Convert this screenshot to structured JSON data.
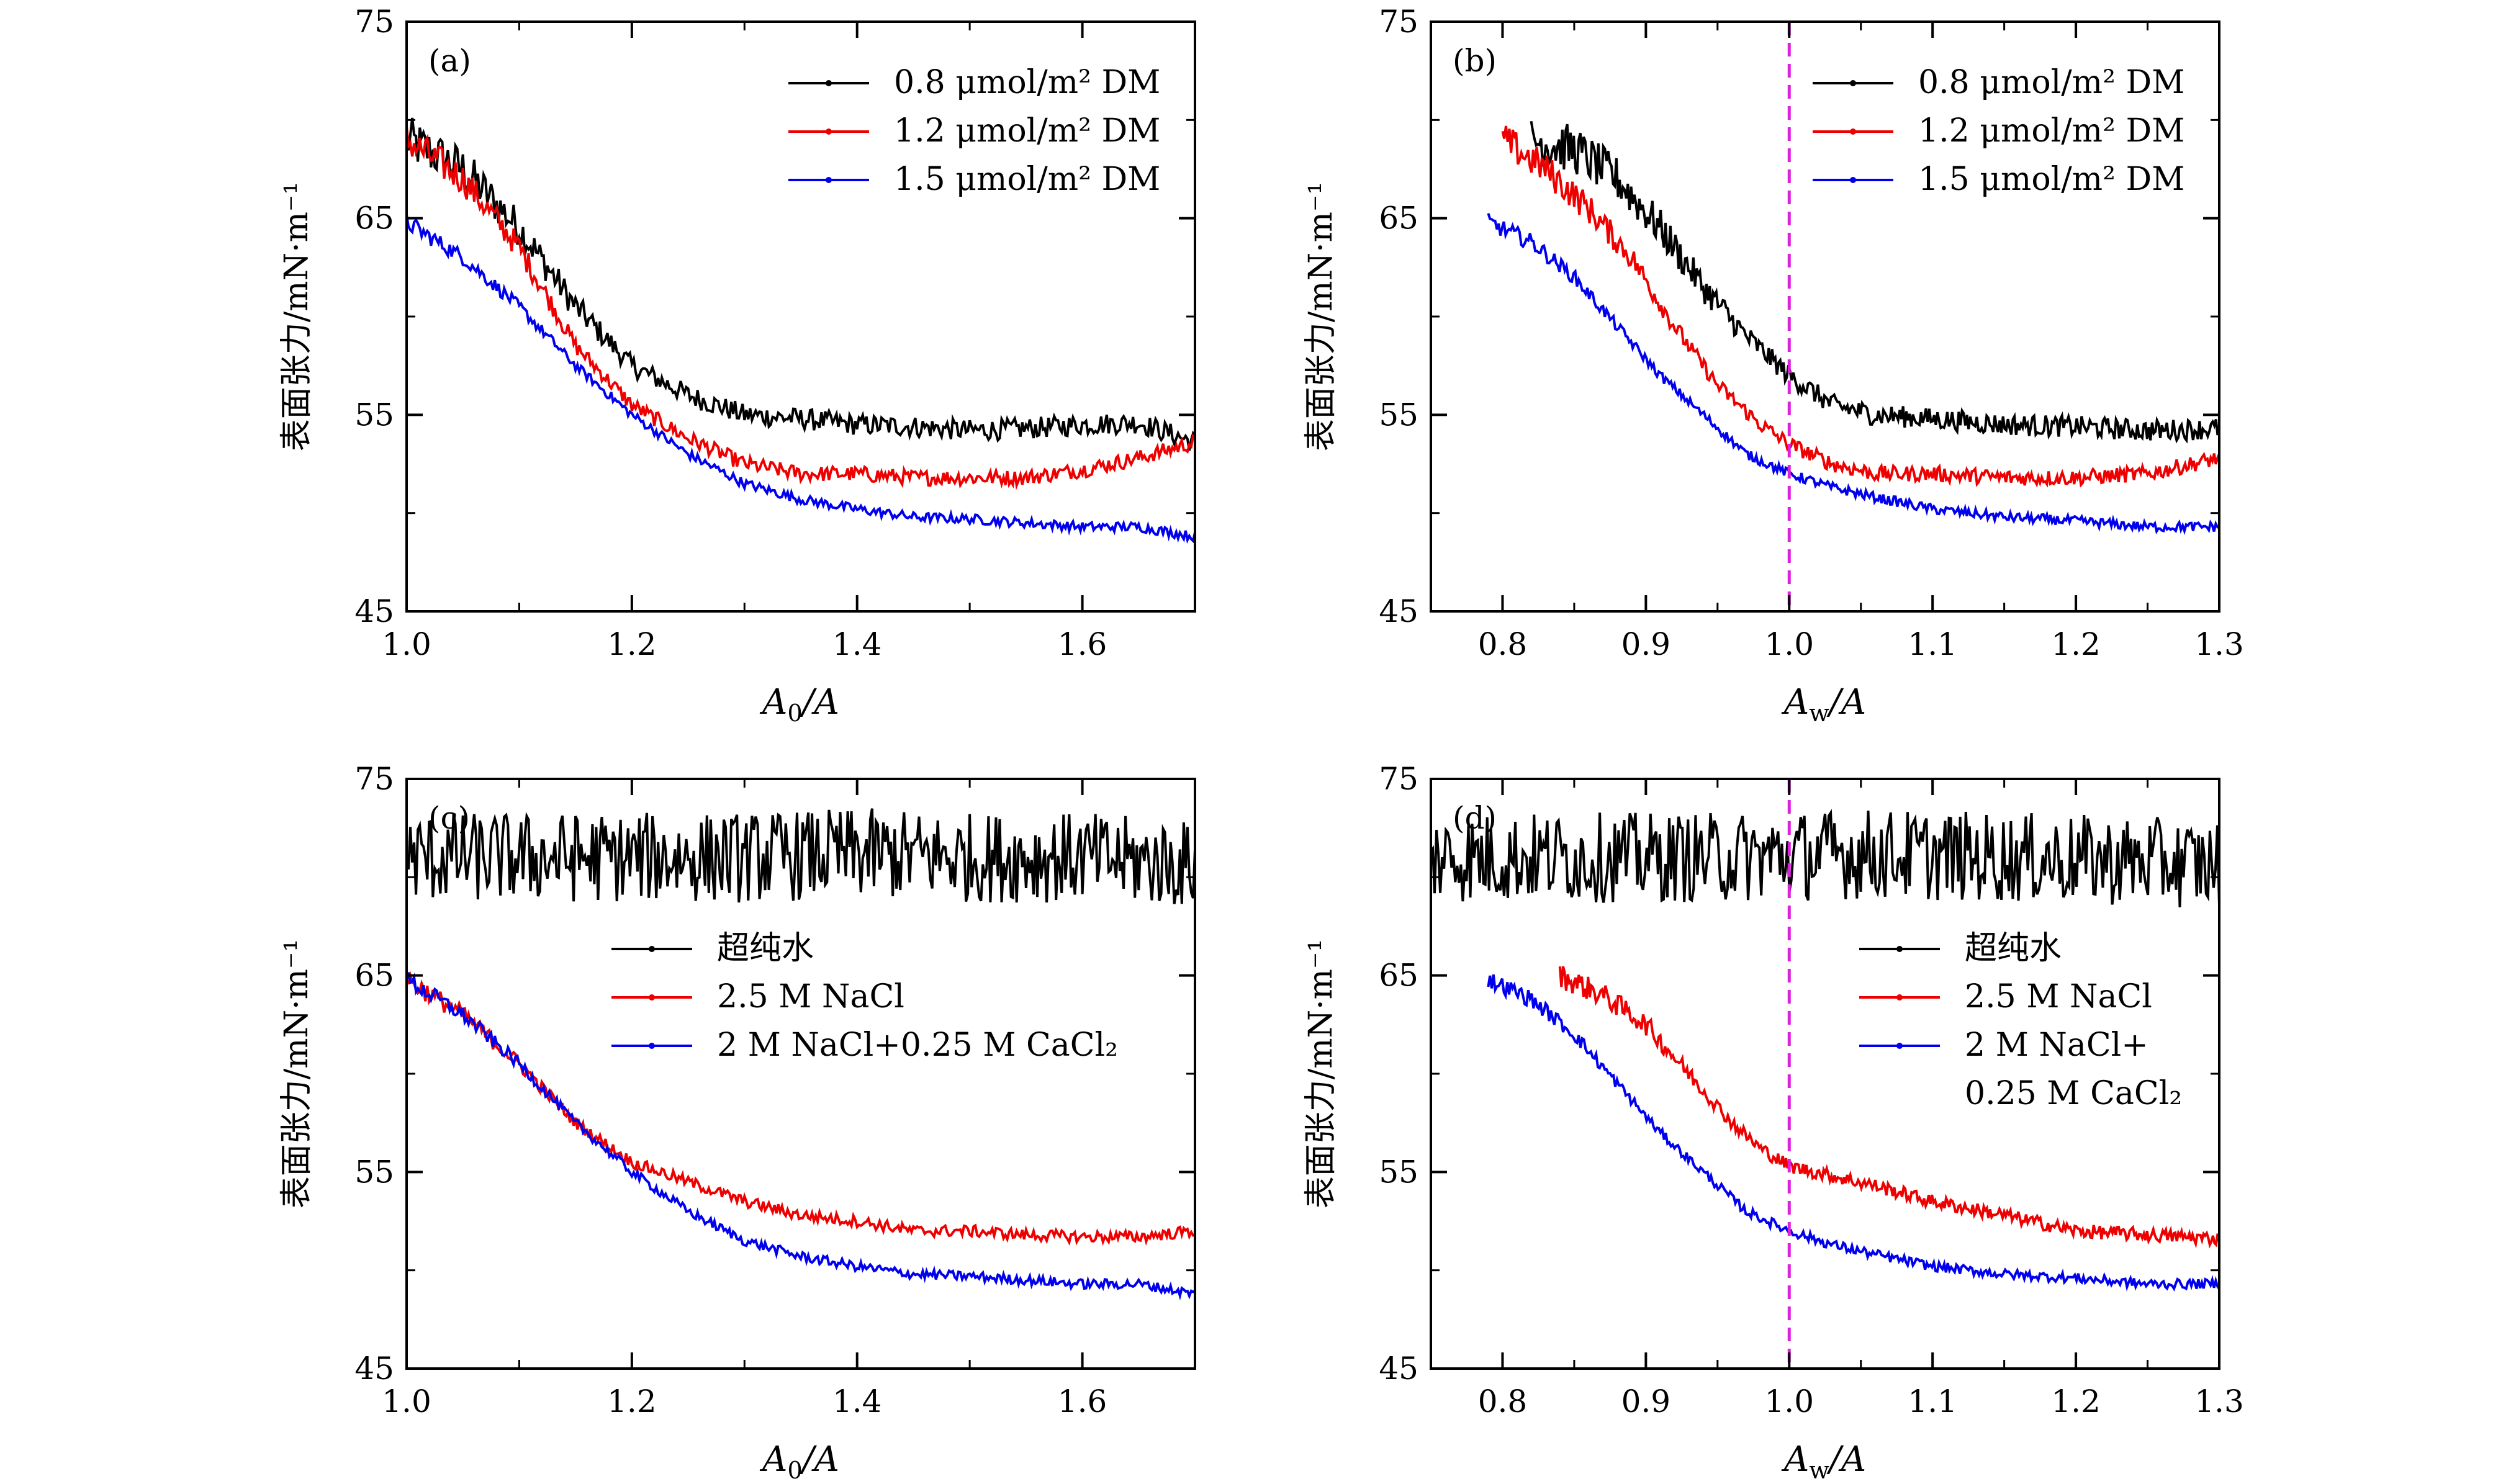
{
  "figure": {
    "ylabel": "表面张力/mN·m⁻¹"
  },
  "chart_data": [
    {
      "panel": "(a)",
      "type": "line",
      "xlabel_main": "A",
      "xlabel_sub": "0",
      "xlabel_tail": "/A",
      "ylabel": "表面张力/mN·m⁻¹",
      "xlim": [
        1.0,
        1.7
      ],
      "ylim": [
        45,
        75
      ],
      "xticks": [
        1.0,
        1.2,
        1.4,
        1.6
      ],
      "xtick_labels": [
        "1.0",
        "1.2",
        "1.4",
        "1.6"
      ],
      "yticks": [
        45,
        55,
        65,
        75
      ],
      "ytick_labels": [
        "45",
        "55",
        "65",
        "75"
      ],
      "legend_position": "top-right",
      "vline": null,
      "series": [
        {
          "name": "0.8 μmol/m² DM",
          "color": "#000000",
          "noise": 0.55,
          "x": [
            1.0,
            1.05,
            1.1,
            1.15,
            1.2,
            1.25,
            1.3,
            1.35,
            1.4,
            1.45,
            1.5,
            1.55,
            1.6,
            1.65,
            1.7
          ],
          "y": [
            69.0,
            67.5,
            64.5,
            60.5,
            57.5,
            56.0,
            55.0,
            54.8,
            54.5,
            54.4,
            54.2,
            54.3,
            54.5,
            54.6,
            53.6
          ]
        },
        {
          "name": "1.2 μmol/m² DM",
          "color": "#ee0000",
          "noise": 0.4,
          "x": [
            1.0,
            1.05,
            1.1,
            1.15,
            1.2,
            1.25,
            1.3,
            1.35,
            1.4,
            1.45,
            1.5,
            1.55,
            1.6,
            1.65,
            1.7
          ],
          "y": [
            69.0,
            67.0,
            63.5,
            58.5,
            55.5,
            53.8,
            52.5,
            52.0,
            52.0,
            51.8,
            51.8,
            51.8,
            52.2,
            52.8,
            53.6
          ]
        },
        {
          "name": "1.5 μmol/m² DM",
          "color": "#0000ee",
          "noise": 0.25,
          "x": [
            1.0,
            1.05,
            1.1,
            1.15,
            1.2,
            1.25,
            1.3,
            1.35,
            1.4,
            1.45,
            1.5,
            1.55,
            1.6,
            1.65,
            1.7
          ],
          "y": [
            64.8,
            63.0,
            60.5,
            57.5,
            55.0,
            53.0,
            51.5,
            50.7,
            50.2,
            49.8,
            49.7,
            49.5,
            49.3,
            49.3,
            48.8
          ]
        }
      ]
    },
    {
      "panel": "(b)",
      "type": "line",
      "xlabel_main": "A",
      "xlabel_sub": "w",
      "xlabel_tail": "/A",
      "ylabel": "表面张力/mN·m⁻¹",
      "xlim": [
        0.75,
        1.3
      ],
      "ylim": [
        45,
        75
      ],
      "xticks": [
        0.8,
        0.9,
        1.0,
        1.1,
        1.2,
        1.3
      ],
      "xtick_labels": [
        "0.8",
        "0.9",
        "1.0",
        "1.1",
        "1.2",
        "1.3"
      ],
      "yticks": [
        45,
        55,
        65,
        75
      ],
      "ytick_labels": [
        "45",
        "55",
        "65",
        "75"
      ],
      "legend_position": "top-right",
      "vline": {
        "x": 1.0,
        "color": "#dd22dd"
      },
      "series": [
        {
          "name": "0.8 μmol/m² DM",
          "color": "#000000",
          "noise": 0.55,
          "x": [
            0.82,
            0.85,
            0.88,
            0.91,
            0.94,
            0.97,
            1.0,
            1.03,
            1.06,
            1.1,
            1.15,
            1.2,
            1.25,
            1.3
          ],
          "y": [
            69.0,
            68.5,
            67.0,
            64.5,
            61.5,
            59.0,
            57.0,
            55.5,
            55.0,
            54.8,
            54.5,
            54.4,
            54.2,
            54.3
          ]
        },
        {
          "name": "1.2 μmol/m² DM",
          "color": "#ee0000",
          "noise": 0.4,
          "x": [
            0.8,
            0.83,
            0.86,
            0.89,
            0.92,
            0.95,
            0.98,
            1.0,
            1.03,
            1.06,
            1.1,
            1.15,
            1.2,
            1.25,
            1.3
          ],
          "y": [
            69.0,
            67.5,
            65.5,
            63.0,
            59.5,
            56.5,
            54.5,
            53.5,
            52.5,
            52.0,
            52.0,
            51.8,
            51.8,
            52.0,
            52.8
          ]
        },
        {
          "name": "1.5 μmol/m² DM",
          "color": "#0000ee",
          "noise": 0.25,
          "x": [
            0.79,
            0.82,
            0.85,
            0.88,
            0.91,
            0.94,
            0.97,
            1.0,
            1.03,
            1.06,
            1.1,
            1.15,
            1.2,
            1.25,
            1.3
          ],
          "y": [
            64.8,
            63.8,
            62.0,
            59.5,
            57.0,
            55.0,
            53.0,
            52.0,
            51.3,
            50.8,
            50.2,
            49.8,
            49.6,
            49.3,
            49.3
          ]
        }
      ]
    },
    {
      "panel": "(c)",
      "type": "line",
      "xlabel_main": "A",
      "xlabel_sub": "0",
      "xlabel_tail": "/A",
      "ylabel": "表面张力/mN·m⁻¹",
      "xlim": [
        1.0,
        1.7
      ],
      "ylim": [
        45,
        75
      ],
      "xticks": [
        1.0,
        1.2,
        1.4,
        1.6
      ],
      "xtick_labels": [
        "1.0",
        "1.2",
        "1.4",
        "1.6"
      ],
      "yticks": [
        45,
        55,
        65,
        75
      ],
      "ytick_labels": [
        "45",
        "55",
        "65",
        "75"
      ],
      "legend_position": "center",
      "vline": null,
      "series": [
        {
          "name": "超纯水",
          "color": "#000000",
          "noise": 0.9,
          "x": [
            1.0,
            1.1,
            1.2,
            1.3,
            1.4,
            1.5,
            1.6,
            1.7
          ],
          "y": [
            71.0,
            71.0,
            71.0,
            71.0,
            71.2,
            71.0,
            71.0,
            70.6
          ]
        },
        {
          "name": "2.5 M NaCl",
          "color": "#ee0000",
          "noise": 0.3,
          "x": [
            1.0,
            1.05,
            1.1,
            1.15,
            1.2,
            1.25,
            1.3,
            1.35,
            1.4,
            1.45,
            1.5,
            1.55,
            1.6,
            1.65,
            1.7
          ],
          "y": [
            64.8,
            63.0,
            60.5,
            57.5,
            55.5,
            54.5,
            53.5,
            52.8,
            52.5,
            52.0,
            52.0,
            51.8,
            51.7,
            51.7,
            52.0
          ]
        },
        {
          "name": "2 M NaCl+0.25 M CaCl₂",
          "color": "#0000ee",
          "noise": 0.25,
          "x": [
            1.0,
            1.05,
            1.1,
            1.15,
            1.2,
            1.25,
            1.3,
            1.35,
            1.4,
            1.45,
            1.5,
            1.55,
            1.6,
            1.65,
            1.7
          ],
          "y": [
            64.8,
            63.0,
            60.5,
            57.5,
            55.0,
            53.0,
            51.5,
            50.7,
            50.2,
            49.8,
            49.7,
            49.5,
            49.3,
            49.3,
            48.8
          ]
        }
      ]
    },
    {
      "panel": "(d)",
      "type": "line",
      "xlabel_main": "A",
      "xlabel_sub": "w",
      "xlabel_tail": "/A",
      "ylabel": "表面张力/mN·m⁻¹",
      "xlim": [
        0.75,
        1.3
      ],
      "ylim": [
        45,
        75
      ],
      "xticks": [
        0.8,
        0.9,
        1.0,
        1.1,
        1.2,
        1.3
      ],
      "xtick_labels": [
        "0.8",
        "0.9",
        "1.0",
        "1.1",
        "1.2",
        "1.3"
      ],
      "yticks": [
        45,
        55,
        65,
        75
      ],
      "ytick_labels": [
        "45",
        "55",
        "65",
        "75"
      ],
      "legend_position": "center-right",
      "vline": {
        "x": 1.0,
        "color": "#dd22dd"
      },
      "series": [
        {
          "name": "超纯水",
          "color": "#000000",
          "noise": 0.9,
          "x": [
            0.75,
            0.85,
            0.95,
            1.05,
            1.15,
            1.25,
            1.3
          ],
          "y": [
            71.0,
            71.0,
            71.0,
            71.2,
            71.0,
            70.8,
            70.6
          ]
        },
        {
          "name": "2.5 M NaCl",
          "color": "#ee0000",
          "noise": 0.35,
          "x": [
            0.84,
            0.87,
            0.9,
            0.93,
            0.96,
            0.98,
            1.0,
            1.03,
            1.06,
            1.1,
            1.15,
            1.2,
            1.25,
            1.3
          ],
          "y": [
            65.0,
            64.0,
            62.5,
            60.0,
            57.5,
            56.2,
            55.3,
            54.8,
            54.3,
            53.5,
            52.8,
            52.0,
            51.8,
            51.6
          ]
        },
        {
          "name": "2 M NaCl+0.25 M CaCl₂",
          "label_lines": [
            "2 M NaCl+",
            "0.25 M CaCl₂"
          ],
          "color": "#0000ee",
          "noise": 0.25,
          "x": [
            0.79,
            0.82,
            0.85,
            0.88,
            0.91,
            0.94,
            0.97,
            1.0,
            1.03,
            1.06,
            1.1,
            1.15,
            1.2,
            1.25,
            1.3
          ],
          "y": [
            64.8,
            63.8,
            62.0,
            59.5,
            57.0,
            55.0,
            53.0,
            52.0,
            51.3,
            50.8,
            50.2,
            49.8,
            49.6,
            49.3,
            49.3
          ]
        }
      ]
    }
  ]
}
